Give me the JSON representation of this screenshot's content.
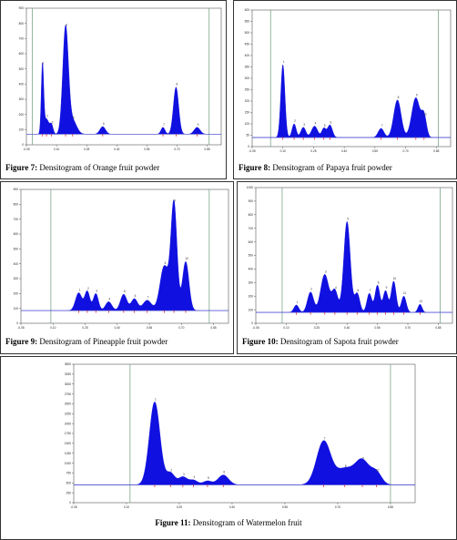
{
  "colors": {
    "fill": "#1010e0",
    "baseline": "#5a5ad0",
    "frame": "#555555",
    "marker": "#e03030",
    "vline": "#6a9a7a"
  },
  "figures": [
    {
      "id": "fig7",
      "label": "Figure 7:",
      "text": "Densitogram of Orange fruit powder"
    },
    {
      "id": "fig8",
      "label": "Figure 8:",
      "text": "Densitogram of Papaya fruit powder"
    },
    {
      "id": "fig9",
      "label": "Figure 9:",
      "text": "Densitogram of Pineapple fruit powder"
    },
    {
      "id": "fig10",
      "label": "Figure 10:",
      "text": "Densitogram of Sapota fruit powder"
    },
    {
      "id": "fig11",
      "label": "Figure 11:",
      "text": "Densitogram of Watermelon fruit"
    }
  ],
  "chart_data": [
    {
      "type": "area",
      "id": "fig7",
      "x_ticks": [
        "-0.05",
        "0.10",
        "0.25",
        "0.40",
        "0.55",
        "0.70",
        "0.85"
      ],
      "y_ticks": [
        "0",
        "100",
        "200",
        "300",
        "400",
        "500",
        "600",
        "700",
        "800",
        "900"
      ],
      "xlim": [
        -0.05,
        0.92
      ],
      "ylim": [
        0,
        900
      ],
      "baseline": 70,
      "vlines": [
        -0.02,
        0.86
      ],
      "peaks": [
        {
          "x": 0.03,
          "height": 450,
          "width": 0.006,
          "label": "1"
        },
        {
          "x": 0.05,
          "height": 100,
          "width": 0.012,
          "label": "2"
        },
        {
          "x": 0.075,
          "height": 60,
          "width": 0.008,
          "label": "3"
        },
        {
          "x": 0.145,
          "height": 700,
          "width": 0.014,
          "label": "4"
        },
        {
          "x": 0.18,
          "height": 90,
          "width": 0.02,
          "label": "5"
        },
        {
          "x": 0.33,
          "height": 50,
          "width": 0.014,
          "label": "6"
        },
        {
          "x": 0.63,
          "height": 45,
          "width": 0.01,
          "label": "7"
        },
        {
          "x": 0.695,
          "height": 310,
          "width": 0.013,
          "label": "8"
        },
        {
          "x": 0.8,
          "height": 45,
          "width": 0.015,
          "label": "9"
        }
      ]
    },
    {
      "type": "area",
      "id": "fig8",
      "x_ticks": [
        "-0.05",
        "0.10",
        "0.25",
        "0.40",
        "0.55",
        "0.70",
        "0.85"
      ],
      "y_ticks": [
        "0",
        "50",
        "100",
        "150",
        "200",
        "250",
        "300",
        "350",
        "400",
        "450",
        "500",
        "550",
        "600"
      ],
      "xlim": [
        -0.05,
        0.92
      ],
      "ylim": [
        0,
        600
      ],
      "baseline": 40,
      "vlines": [
        0.04,
        0.86
      ],
      "peaks": [
        {
          "x": 0.1,
          "height": 320,
          "width": 0.01,
          "label": "1"
        },
        {
          "x": 0.155,
          "height": 60,
          "width": 0.01,
          "label": "2"
        },
        {
          "x": 0.2,
          "height": 45,
          "width": 0.012,
          "label": "3"
        },
        {
          "x": 0.255,
          "height": 50,
          "width": 0.015,
          "label": "4"
        },
        {
          "x": 0.3,
          "height": 40,
          "width": 0.01,
          "label": "5"
        },
        {
          "x": 0.33,
          "height": 55,
          "width": 0.012,
          "label": "6"
        },
        {
          "x": 0.58,
          "height": 40,
          "width": 0.014,
          "label": "7"
        },
        {
          "x": 0.66,
          "height": 165,
          "width": 0.018,
          "label": "8"
        },
        {
          "x": 0.75,
          "height": 175,
          "width": 0.02,
          "label": "9"
        },
        {
          "x": 0.79,
          "height": 90,
          "width": 0.012,
          "label": "10"
        }
      ]
    },
    {
      "type": "area",
      "id": "fig9",
      "x_ticks": [
        "-0.05",
        "0.10",
        "0.25",
        "0.40",
        "0.55",
        "0.70",
        "0.85"
      ],
      "y_ticks": [
        "0",
        "100",
        "200",
        "300",
        "400",
        "500",
        "600",
        "700",
        "800",
        "900"
      ],
      "xlim": [
        -0.05,
        0.92
      ],
      "ylim": [
        0,
        900
      ],
      "baseline": 85,
      "vlines": [
        0.09,
        0.83
      ],
      "peaks": [
        {
          "x": 0.22,
          "height": 120,
          "width": 0.015,
          "label": "1"
        },
        {
          "x": 0.26,
          "height": 130,
          "width": 0.012,
          "label": "2"
        },
        {
          "x": 0.3,
          "height": 115,
          "width": 0.012,
          "label": "3"
        },
        {
          "x": 0.36,
          "height": 60,
          "width": 0.015,
          "label": "4"
        },
        {
          "x": 0.43,
          "height": 110,
          "width": 0.015,
          "label": "5"
        },
        {
          "x": 0.48,
          "height": 80,
          "width": 0.015,
          "label": "6"
        },
        {
          "x": 0.54,
          "height": 70,
          "width": 0.02,
          "label": "7"
        },
        {
          "x": 0.62,
          "height": 300,
          "width": 0.02,
          "label": "8"
        },
        {
          "x": 0.665,
          "height": 720,
          "width": 0.014,
          "label": "9"
        },
        {
          "x": 0.72,
          "height": 330,
          "width": 0.015,
          "label": "10"
        }
      ]
    },
    {
      "type": "area",
      "id": "fig10",
      "x_ticks": [
        "-0.05",
        "0.10",
        "0.25",
        "0.40",
        "0.55",
        "0.70",
        "0.85"
      ],
      "y_ticks": [
        "0",
        "100",
        "200",
        "300",
        "400",
        "500",
        "600",
        "700",
        "800",
        "900",
        "1000"
      ],
      "xlim": [
        -0.05,
        0.92
      ],
      "ylim": [
        0,
        1000
      ],
      "baseline": 80,
      "vlines": [
        0.08,
        0.86
      ],
      "peaks": [
        {
          "x": 0.15,
          "height": 55,
          "width": 0.012,
          "label": "1"
        },
        {
          "x": 0.22,
          "height": 150,
          "width": 0.015,
          "label": "2"
        },
        {
          "x": 0.29,
          "height": 280,
          "width": 0.02,
          "label": "3"
        },
        {
          "x": 0.34,
          "height": 160,
          "width": 0.015,
          "label": "4"
        },
        {
          "x": 0.4,
          "height": 670,
          "width": 0.016,
          "label": "5"
        },
        {
          "x": 0.45,
          "height": 140,
          "width": 0.013,
          "label": "6"
        },
        {
          "x": 0.51,
          "height": 140,
          "width": 0.012,
          "label": "7"
        },
        {
          "x": 0.55,
          "height": 200,
          "width": 0.012,
          "label": "8"
        },
        {
          "x": 0.59,
          "height": 160,
          "width": 0.012,
          "label": "9"
        },
        {
          "x": 0.63,
          "height": 230,
          "width": 0.012,
          "label": "10"
        },
        {
          "x": 0.68,
          "height": 120,
          "width": 0.012,
          "label": "11"
        },
        {
          "x": 0.76,
          "height": 60,
          "width": 0.01,
          "label": "12"
        }
      ]
    },
    {
      "type": "area",
      "id": "fig11",
      "x_ticks": [
        "-0.05",
        "0.10",
        "0.25",
        "0.40",
        "0.55",
        "0.70",
        "0.85"
      ],
      "y_ticks": [
        "0",
        "250",
        "500",
        "750",
        "1000",
        "1250",
        "1500",
        "1750",
        "2000",
        "2250",
        "2500",
        "2750",
        "3000",
        "3250",
        "3500"
      ],
      "xlim": [
        -0.05,
        0.92
      ],
      "ylim": [
        0,
        3500
      ],
      "baseline": 450,
      "vlines": [
        0.11,
        0.85
      ],
      "peaks": [
        {
          "x": 0.18,
          "height": 2100,
          "width": 0.015,
          "label": "1"
        },
        {
          "x": 0.225,
          "height": 300,
          "width": 0.012,
          "label": "2"
        },
        {
          "x": 0.26,
          "height": 200,
          "width": 0.012,
          "label": "3"
        },
        {
          "x": 0.29,
          "height": 120,
          "width": 0.012,
          "label": "4"
        },
        {
          "x": 0.33,
          "height": 100,
          "width": 0.012,
          "label": "5"
        },
        {
          "x": 0.375,
          "height": 250,
          "width": 0.015,
          "label": "6"
        },
        {
          "x": 0.66,
          "height": 1100,
          "width": 0.02,
          "label": "7"
        },
        {
          "x": 0.72,
          "height": 400,
          "width": 0.025,
          "label": "8"
        },
        {
          "x": 0.77,
          "height": 600,
          "width": 0.02,
          "label": "9"
        },
        {
          "x": 0.81,
          "height": 300,
          "width": 0.015,
          "label": "10"
        }
      ]
    }
  ]
}
